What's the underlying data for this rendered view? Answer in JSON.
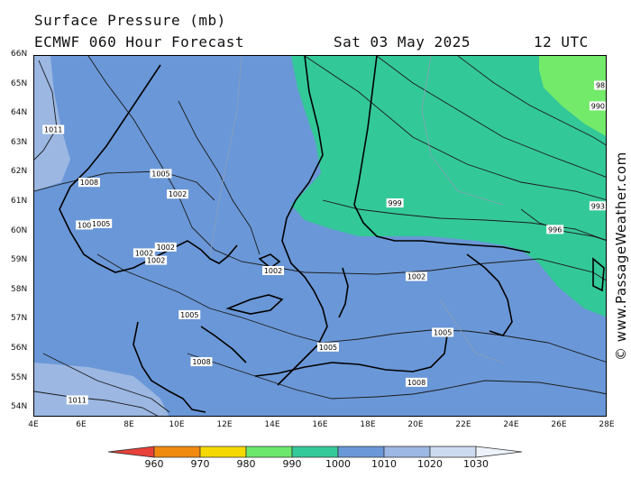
{
  "header": {
    "title": "Surface Pressure (mb)",
    "model_line": "ECMWF 060 Hour Forecast",
    "date": "Sat 03 May 2025",
    "time": "12 UTC"
  },
  "copyright": "© www.PassageWeather.com",
  "map": {
    "lat_labels": [
      "66N",
      "65N",
      "64N",
      "63N",
      "62N",
      "61N",
      "60N",
      "59N",
      "58N",
      "57N",
      "56N",
      "55N",
      "54N"
    ],
    "lon_labels": [
      "4E",
      "6E",
      "8E",
      "10E",
      "12E",
      "14E",
      "16E",
      "18E",
      "20E",
      "22E",
      "24E",
      "26E",
      "28E"
    ],
    "lat_range": [
      53.7,
      66
    ],
    "lon_range": [
      4,
      28
    ],
    "contour_labels": [
      {
        "text": "1011",
        "lon": 4.8,
        "lat": 63.5
      },
      {
        "text": "1008",
        "lon": 6.3,
        "lat": 61.7
      },
      {
        "text": "1005",
        "lon": 9.3,
        "lat": 62.0
      },
      {
        "text": "1002",
        "lon": 10.0,
        "lat": 61.3
      },
      {
        "text": "1005",
        "lon": 6.8,
        "lat": 60.3
      },
      {
        "text": "100",
        "lon": 6.1,
        "lat": 60.25
      },
      {
        "text": "1002",
        "lon": 9.5,
        "lat": 59.5
      },
      {
        "text": "1002",
        "lon": 8.6,
        "lat": 59.3
      },
      {
        "text": "1002",
        "lon": 9.1,
        "lat": 59.05
      },
      {
        "text": "1002",
        "lon": 14.0,
        "lat": 58.7
      },
      {
        "text": "1002",
        "lon": 20.0,
        "lat": 58.5
      },
      {
        "text": "999",
        "lon": 19.1,
        "lat": 61.0
      },
      {
        "text": "996",
        "lon": 25.8,
        "lat": 60.1
      },
      {
        "text": "993",
        "lon": 27.6,
        "lat": 60.9
      },
      {
        "text": "990",
        "lon": 27.6,
        "lat": 64.3
      },
      {
        "text": "98",
        "lon": 27.7,
        "lat": 65.0
      },
      {
        "text": "1005",
        "lon": 10.5,
        "lat": 57.2
      },
      {
        "text": "1005",
        "lon": 16.3,
        "lat": 56.1
      },
      {
        "text": "1005",
        "lon": 21.1,
        "lat": 56.6
      },
      {
        "text": "1008",
        "lon": 11.0,
        "lat": 55.6
      },
      {
        "text": "1008",
        "lon": 20.0,
        "lat": 54.9
      },
      {
        "text": "1011",
        "lon": 5.8,
        "lat": 54.3
      }
    ]
  },
  "legend": {
    "labels": [
      "960",
      "970",
      "980",
      "990",
      "1000",
      "1010",
      "1020",
      "1030"
    ],
    "colors": [
      "#e8413a",
      "#f08a10",
      "#f5d800",
      "#6ce86c",
      "#35c99a",
      "#6b98d8",
      "#9db8e4",
      "#cddbf1",
      "#eef2fa"
    ]
  },
  "colors": {
    "zone_996_1005": "#33c897",
    "zone_1005_1014": "#6a97d7",
    "zone_1014_plus": "#9bb7e2",
    "zone_below_990": "#74ea6a",
    "land": "#000000"
  }
}
